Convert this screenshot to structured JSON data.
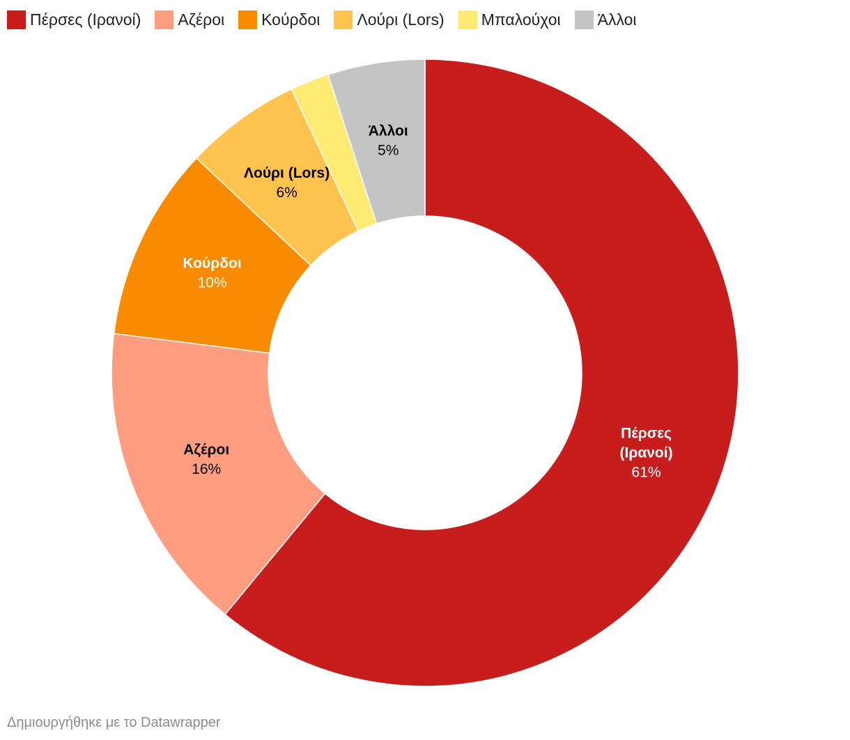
{
  "legend": {
    "items": [
      {
        "label": "Πέρσες (Ιρανοί)",
        "color": "#c71d1d"
      },
      {
        "label": "Αζέροι",
        "color": "#ff9d80"
      },
      {
        "label": "Κούρδοι",
        "color": "#f98b00"
      },
      {
        "label": "Λούρι (Lors)",
        "color": "#ffc34e"
      },
      {
        "label": "Μπαλούχοι",
        "color": "#ffea73"
      },
      {
        "label": "Άλλοι",
        "color": "#c4c4c4"
      }
    ]
  },
  "chart_data": {
    "type": "pie",
    "variant": "donut",
    "slices": [
      {
        "name": "Πέρσες (Ιρανοί)",
        "value": 61,
        "value_label": "61%",
        "color": "#c71d1d",
        "label_lines": [
          "Πέρσες",
          "(Ιρανοί)"
        ],
        "label_color": "#ffffff"
      },
      {
        "name": "Αζέροι",
        "value": 16,
        "value_label": "16%",
        "color": "#ff9d80",
        "label_lines": [
          "Αζέροι"
        ],
        "label_color": "#000000"
      },
      {
        "name": "Κούρδοι",
        "value": 10,
        "value_label": "10%",
        "color": "#f98b00",
        "label_lines": [
          "Κούρδοι"
        ],
        "label_color": "#ffffff"
      },
      {
        "name": "Λούρι (Lors)",
        "value": 6,
        "value_label": "6%",
        "color": "#ffc34e",
        "label_lines": [
          "Λούρι (Lors)"
        ],
        "label_color": "#000000"
      },
      {
        "name": "Μπαλούχοι",
        "value": 2,
        "value_label": "",
        "color": "#ffea73",
        "label_lines": [],
        "label_color": "#000000"
      },
      {
        "name": "Άλλοι",
        "value": 5,
        "value_label": "5%",
        "color": "#c4c4c4",
        "label_lines": [
          "Άλλοι"
        ],
        "label_color": "#000000"
      }
    ],
    "start": "12 o'clock",
    "direction": "clockwise",
    "legend_position": "top"
  },
  "footer": {
    "credit": "Δημιουργήθηκε με το Datawrapper"
  }
}
